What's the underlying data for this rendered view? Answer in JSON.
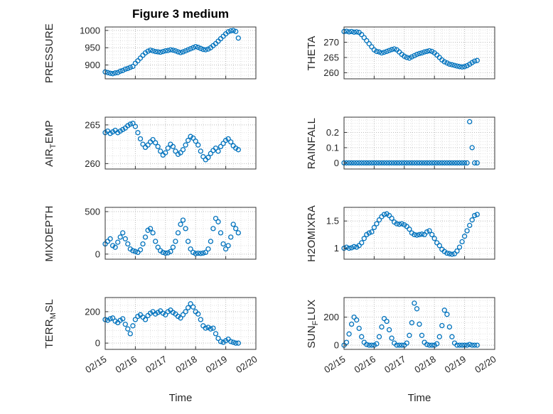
{
  "title": "Figure 3 medium",
  "xlabel": "Time",
  "colors": {
    "marker": "#0072BD",
    "axis": "#333333",
    "text": "#262626",
    "grid_major": "#bababa",
    "grid_minor": "#e0e0e0"
  },
  "x_axis": {
    "lim": [
      0,
      5
    ],
    "ticks": [
      0,
      1,
      2,
      3,
      4,
      5
    ],
    "tick_labels": [
      "02/15",
      "02/16",
      "02/17",
      "02/18",
      "02/19",
      "02/20"
    ],
    "minor_step": 0.25,
    "x_values": [
      0,
      0.083,
      0.167,
      0.25,
      0.333,
      0.417,
      0.5,
      0.583,
      0.667,
      0.75,
      0.833,
      0.917,
      1,
      1.083,
      1.167,
      1.25,
      1.333,
      1.417,
      1.5,
      1.583,
      1.667,
      1.75,
      1.833,
      1.917,
      2,
      2.083,
      2.167,
      2.25,
      2.333,
      2.417,
      2.5,
      2.583,
      2.667,
      2.75,
      2.833,
      2.917,
      3,
      3.083,
      3.167,
      3.25,
      3.333,
      3.417,
      3.5,
      3.583,
      3.667,
      3.75,
      3.833,
      3.917,
      4,
      4.083,
      4.167,
      4.25,
      4.333,
      4.417
    ]
  },
  "chart_data": [
    {
      "type": "scatter",
      "name": "PRESSURE",
      "ylabel": {
        "pre": "PRESSURE",
        "sub": "",
        "post": ""
      },
      "yticks": [
        900,
        950,
        1000
      ],
      "ytick_labels": [
        "900",
        "950",
        "1000"
      ],
      "ylim": [
        860,
        1010
      ],
      "y_minor_step": 10,
      "show_x_tick_labels": false,
      "y": [
        880,
        878,
        876,
        875,
        877,
        878,
        882,
        884,
        888,
        890,
        893,
        896,
        905,
        912,
        920,
        928,
        935,
        940,
        943,
        941,
        939,
        938,
        937,
        939,
        941,
        942,
        944,
        943,
        941,
        938,
        936,
        938,
        941,
        944,
        947,
        950,
        953,
        951,
        948,
        945,
        944,
        946,
        950,
        956,
        962,
        969,
        976,
        983,
        990,
        996,
        999,
        1000,
        997,
        978
      ]
    },
    {
      "type": "scatter",
      "name": "THETA",
      "ylabel": {
        "pre": "THETA",
        "sub": "",
        "post": ""
      },
      "yticks": [
        260,
        265,
        270
      ],
      "ytick_labels": [
        "260",
        "265",
        "270"
      ],
      "ylim": [
        258,
        275
      ],
      "y_minor_step": 1,
      "show_x_tick_labels": false,
      "y": [
        273.5,
        273.6,
        273.4,
        273.5,
        273.3,
        273.4,
        273.2,
        272.5,
        271.5,
        270.5,
        269.5,
        268.5,
        267.5,
        267,
        266.8,
        266.5,
        266.7,
        267,
        267.3,
        267.6,
        267.8,
        267.5,
        266.8,
        266,
        265.4,
        265,
        264.8,
        265.2,
        265.6,
        266,
        266.3,
        266.5,
        266.8,
        267,
        267.2,
        267,
        266.5,
        265.8,
        265,
        264.2,
        263.6,
        263.2,
        262.8,
        262.6,
        262.4,
        262.2,
        262,
        261.9,
        262,
        262.3,
        262.8,
        263.3,
        263.8,
        264
      ]
    },
    {
      "type": "scatter",
      "name": "AIR_TEMP",
      "ylabel": {
        "pre": "AIR",
        "sub": "T",
        "post": "EMP"
      },
      "yticks": [
        260,
        265
      ],
      "ytick_labels": [
        "260",
        "265"
      ],
      "ylim": [
        259.3,
        266
      ],
      "y_minor_step": 1,
      "show_x_tick_labels": false,
      "y": [
        264,
        264.2,
        263.9,
        264.1,
        264.3,
        264,
        264.2,
        264.4,
        264.6,
        264.9,
        265.1,
        265.2,
        264.8,
        264,
        263.2,
        262.5,
        262.1,
        262.4,
        262.8,
        263.1,
        262.7,
        262.2,
        261.6,
        261.1,
        261.4,
        262,
        262.5,
        262.2,
        261.6,
        261.2,
        261.4,
        261.8,
        262.4,
        263,
        263.5,
        263.3,
        262.9,
        262.4,
        261.6,
        260.9,
        260.5,
        260.8,
        261.3,
        261.7,
        262,
        261.6,
        262.2,
        262.6,
        263,
        263.2,
        262.8,
        262.3,
        262,
        261.8
      ]
    },
    {
      "type": "scatter",
      "name": "RAINFALL",
      "ylabel": {
        "pre": "RAINFALL",
        "sub": "",
        "post": ""
      },
      "yticks": [
        0,
        0.1,
        0.2
      ],
      "ytick_labels": [
        "0",
        "0.1",
        "0.2"
      ],
      "ylim": [
        -0.04,
        0.3
      ],
      "y_minor_step": 0.02,
      "show_x_tick_labels": false,
      "y": [
        0,
        0,
        0,
        0,
        0,
        0,
        0,
        0,
        0,
        0,
        0,
        0,
        0,
        0,
        0,
        0,
        0,
        0,
        0,
        0,
        0,
        0,
        0,
        0,
        0,
        0,
        0,
        0,
        0,
        0,
        0,
        0,
        0,
        0,
        0,
        0,
        0,
        0,
        0,
        0,
        0,
        0,
        0,
        0,
        0,
        0,
        0,
        0,
        0,
        0,
        0.27,
        0.1,
        0,
        0
      ]
    },
    {
      "type": "scatter",
      "name": "MIXDEPTH",
      "ylabel": {
        "pre": "MIXDEPTH",
        "sub": "",
        "post": ""
      },
      "yticks": [
        0,
        500
      ],
      "ytick_labels": [
        "0",
        "500"
      ],
      "ylim": [
        -60,
        550
      ],
      "y_minor_step": 100,
      "show_x_tick_labels": false,
      "y": [
        120,
        150,
        180,
        100,
        80,
        140,
        200,
        250,
        180,
        120,
        60,
        40,
        30,
        20,
        50,
        120,
        200,
        280,
        300,
        250,
        150,
        80,
        40,
        20,
        10,
        15,
        30,
        80,
        150,
        250,
        350,
        400,
        300,
        150,
        60,
        20,
        5,
        10,
        8,
        12,
        20,
        60,
        150,
        300,
        420,
        380,
        250,
        120,
        60,
        100,
        200,
        350,
        300,
        250
      ]
    },
    {
      "type": "scatter",
      "name": "H2OMIXRA",
      "ylabel": {
        "pre": "H2OMIXRA",
        "sub": "",
        "post": ""
      },
      "yticks": [
        1,
        1.5
      ],
      "ytick_labels": [
        "1",
        "1.5"
      ],
      "ylim": [
        0.8,
        1.75
      ],
      "y_minor_step": 0.1,
      "show_x_tick_labels": false,
      "y": [
        1,
        1.02,
        1,
        1.01,
        1.03,
        1.02,
        1.05,
        1.1,
        1.18,
        1.25,
        1.28,
        1.3,
        1.38,
        1.45,
        1.52,
        1.58,
        1.62,
        1.63,
        1.6,
        1.55,
        1.48,
        1.45,
        1.44,
        1.45,
        1.43,
        1.4,
        1.35,
        1.28,
        1.25,
        1.24,
        1.25,
        1.26,
        1.25,
        1.3,
        1.32,
        1.25,
        1.18,
        1.1,
        1.05,
        0.98,
        0.94,
        0.91,
        0.9,
        0.89,
        0.9,
        0.95,
        1.02,
        1.12,
        1.22,
        1.32,
        1.42,
        1.52,
        1.6,
        1.62
      ]
    },
    {
      "type": "scatter",
      "name": "TERR_MSL",
      "ylabel": {
        "pre": "TERR",
        "sub": "M",
        "post": "SL"
      },
      "yticks": [
        0,
        200
      ],
      "ytick_labels": [
        "0",
        "200"
      ],
      "ylim": [
        -40,
        290
      ],
      "y_minor_step": 40,
      "show_x_tick_labels": true,
      "y": [
        150,
        145,
        155,
        160,
        140,
        130,
        145,
        155,
        120,
        90,
        60,
        110,
        150,
        170,
        180,
        165,
        150,
        175,
        190,
        200,
        185,
        195,
        205,
        190,
        180,
        200,
        210,
        195,
        185,
        170,
        160,
        180,
        200,
        225,
        250,
        230,
        200,
        185,
        150,
        110,
        95,
        100,
        90,
        95,
        60,
        30,
        10,
        5,
        15,
        25,
        10,
        5,
        0,
        0
      ]
    },
    {
      "type": "scatter",
      "name": "SUN_FLUX",
      "ylabel": {
        "pre": "SUN",
        "sub": "F",
        "post": "LUX"
      },
      "yticks": [
        0,
        200
      ],
      "ytick_labels": [
        "0",
        "200"
      ],
      "ylim": [
        -30,
        340
      ],
      "y_minor_step": 40,
      "show_x_tick_labels": true,
      "y": [
        0,
        20,
        80,
        150,
        200,
        180,
        120,
        60,
        20,
        5,
        0,
        0,
        0,
        10,
        60,
        130,
        190,
        170,
        110,
        50,
        15,
        0,
        0,
        0,
        0,
        15,
        70,
        160,
        300,
        260,
        150,
        70,
        20,
        5,
        0,
        0,
        0,
        10,
        60,
        140,
        250,
        220,
        130,
        60,
        15,
        0,
        0,
        0,
        0,
        0,
        5,
        0,
        0,
        0
      ]
    }
  ]
}
